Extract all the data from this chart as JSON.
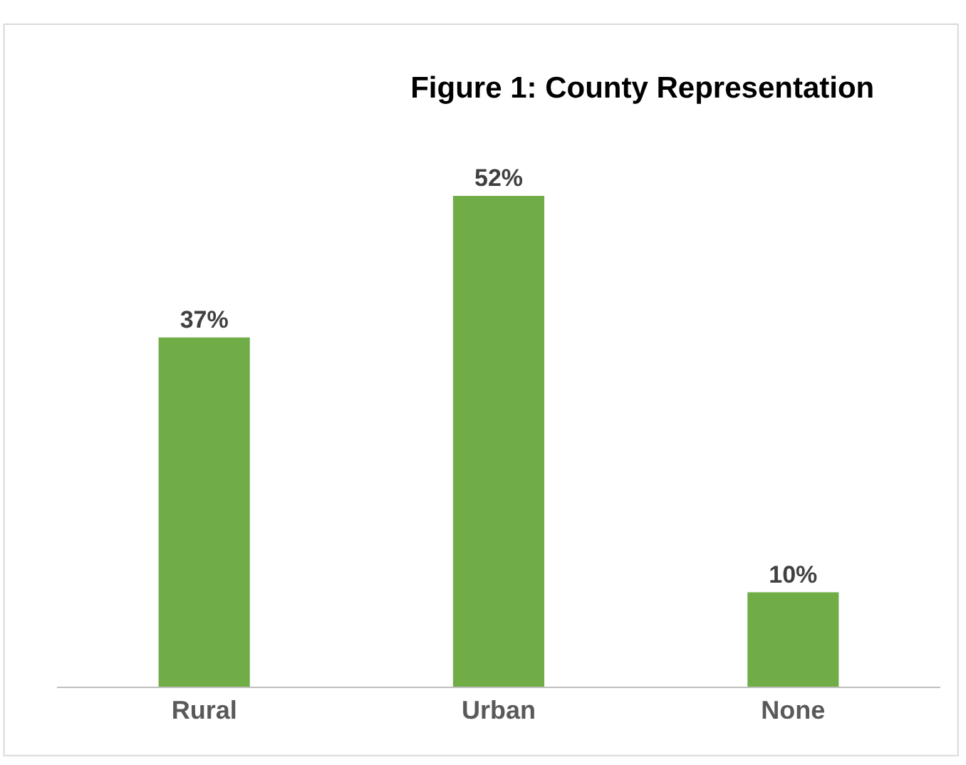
{
  "chart_data": {
    "type": "bar",
    "title": "Figure 1: County Representation",
    "categories": [
      "Rural",
      "Urban",
      "None"
    ],
    "values": [
      37,
      52,
      10
    ],
    "value_labels": [
      "37%",
      "52%",
      "10%"
    ],
    "color": "#70ad47",
    "legend": false,
    "tick_labels": "x"
  }
}
